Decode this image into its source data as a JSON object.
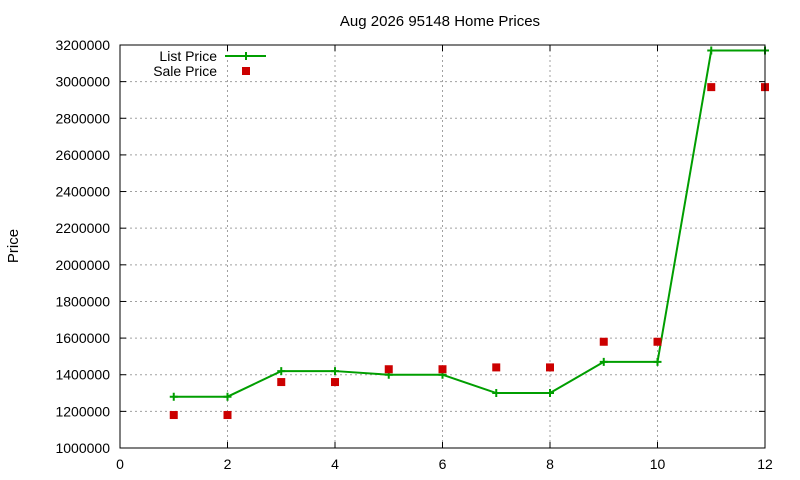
{
  "chart_data": {
    "type": "line",
    "title": "Aug 2026 95148 Home Prices",
    "xlabel": "",
    "ylabel": "Price",
    "xlim": [
      0,
      12
    ],
    "ylim": [
      1000000,
      3200000
    ],
    "x_ticks": [
      "0",
      "2",
      "4",
      "6",
      "8",
      "10",
      "12"
    ],
    "y_ticks": [
      "1000000",
      "1200000",
      "1400000",
      "1600000",
      "1800000",
      "2000000",
      "2200000",
      "2400000",
      "2600000",
      "2800000",
      "3000000",
      "3200000"
    ],
    "grid": true,
    "legend_position": "top-left",
    "series": [
      {
        "name": "List Price",
        "style": "line-with-plus-markers",
        "color": "#009e00",
        "x": [
          1,
          2,
          3,
          4,
          5,
          6,
          7,
          8,
          9,
          10,
          11,
          12
        ],
        "values": [
          1280000,
          1280000,
          1420000,
          1420000,
          1400000,
          1400000,
          1300000,
          1300000,
          1470000,
          1470000,
          3170000,
          3170000
        ]
      },
      {
        "name": "Sale Price",
        "style": "square-markers",
        "color": "#cc0000",
        "x": [
          1,
          2,
          3,
          4,
          5,
          6,
          7,
          8,
          9,
          10,
          11,
          12
        ],
        "values": [
          1180000,
          1180000,
          1360000,
          1360000,
          1430000,
          1430000,
          1440000,
          1440000,
          1580000,
          1580000,
          2970000,
          2970000
        ]
      }
    ]
  }
}
